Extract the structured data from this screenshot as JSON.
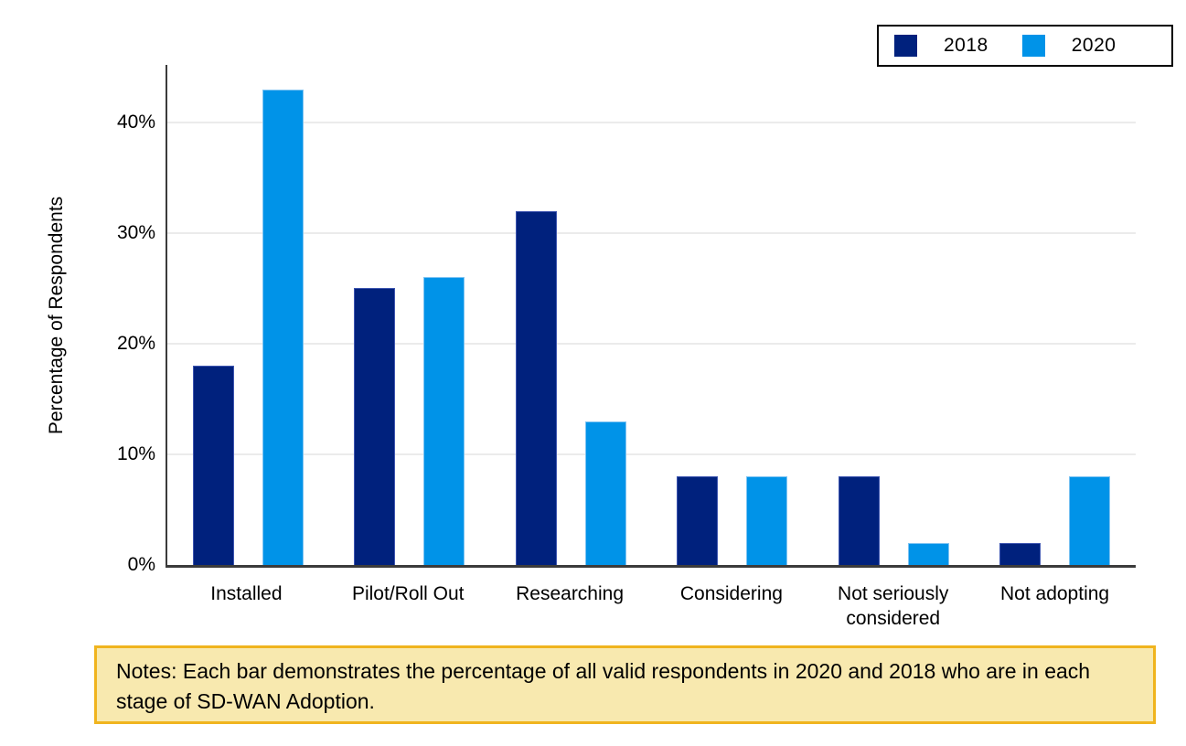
{
  "chart_data": {
    "type": "bar",
    "categories": [
      "Installed",
      "Pilot/Roll Out",
      "Researching",
      "Considering",
      "Not seriously considered",
      "Not adopting"
    ],
    "series": [
      {
        "name": "2018",
        "color": "#00217d",
        "edge_color": "#3d55b0",
        "values": [
          18,
          25,
          32,
          8,
          8,
          2
        ]
      },
      {
        "name": "2020",
        "color": "#0093e8",
        "edge_color": "#7fc4f2",
        "values": [
          43,
          26,
          13,
          8,
          2,
          8
        ]
      }
    ],
    "title": "",
    "xlabel": "",
    "ylabel": "Percentage of Respondents",
    "yticks": [
      {
        "label": "0%",
        "value": 0
      },
      {
        "label": "10%",
        "value": 10
      },
      {
        "label": "20%",
        "value": 20
      },
      {
        "label": "30%",
        "value": 30
      },
      {
        "label": "40%",
        "value": 40
      }
    ],
    "ylim": [
      0,
      45.2
    ],
    "grid": true,
    "gridline_color": "#ebebeb",
    "axis_color": "#3b3b3b",
    "legend_position": "top-right"
  },
  "legend": {
    "items": [
      {
        "label": "2018",
        "color": "#00217d"
      },
      {
        "label": "2020",
        "color": "#0093e8"
      }
    ]
  },
  "notes": {
    "text": "Notes: Each bar demonstrates the percentage of all valid respondents in 2020 and 2018 who are in each stage of SD-WAN Adoption.",
    "background": "#f8e9af",
    "border_color": "#f0b41e"
  }
}
